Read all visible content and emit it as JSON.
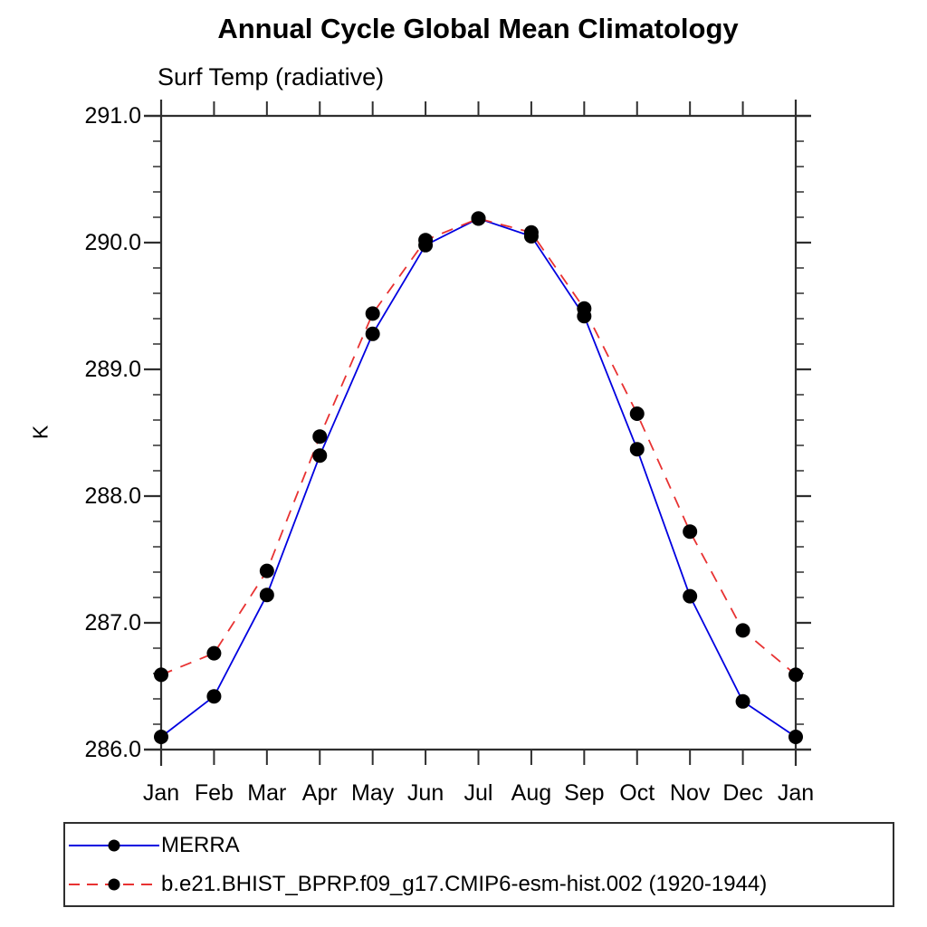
{
  "header": {
    "title": "Annual Cycle Global Mean Climatology",
    "subtitle": "Surf Temp (radiative)"
  },
  "chart_data": {
    "type": "line",
    "title": "Annual Cycle Global Mean Climatology",
    "subtitle": "Surf Temp (radiative)",
    "xlabel": "",
    "ylabel": "K",
    "x_tick_labels": [
      "Jan",
      "Feb",
      "Mar",
      "Apr",
      "May",
      "Jun",
      "Jul",
      "Aug",
      "Sep",
      "Oct",
      "Nov",
      "Dec",
      "Jan"
    ],
    "y_tick_labels": [
      "286.0",
      "287.0",
      "288.0",
      "289.0",
      "290.0",
      "291.0"
    ],
    "ylim": [
      286.0,
      291.0
    ],
    "y_major_step": 1.0,
    "y_minor_step": 0.2,
    "grid": false,
    "legend_position": "bottom",
    "axis_color": "#2f2f2f",
    "text_color": "#000000",
    "series": [
      {
        "name": "MERRA",
        "color": "#0000e0",
        "style": "solid",
        "marker": "circle",
        "marker_color": "#000000",
        "values": [
          286.1,
          286.42,
          287.22,
          288.32,
          289.28,
          289.98,
          290.19,
          290.05,
          289.42,
          288.37,
          287.21,
          286.38,
          286.1
        ]
      },
      {
        "name": "b.e21.BHIST_BPRP.f09_g17.CMIP6-esm-hist.002 (1920-1944)",
        "color": "#e83232",
        "style": "dashed",
        "marker": "circle",
        "marker_color": "#000000",
        "values": [
          286.59,
          286.76,
          287.41,
          288.47,
          289.44,
          290.02,
          290.19,
          290.08,
          289.48,
          288.65,
          287.72,
          286.94,
          286.59
        ]
      }
    ]
  }
}
